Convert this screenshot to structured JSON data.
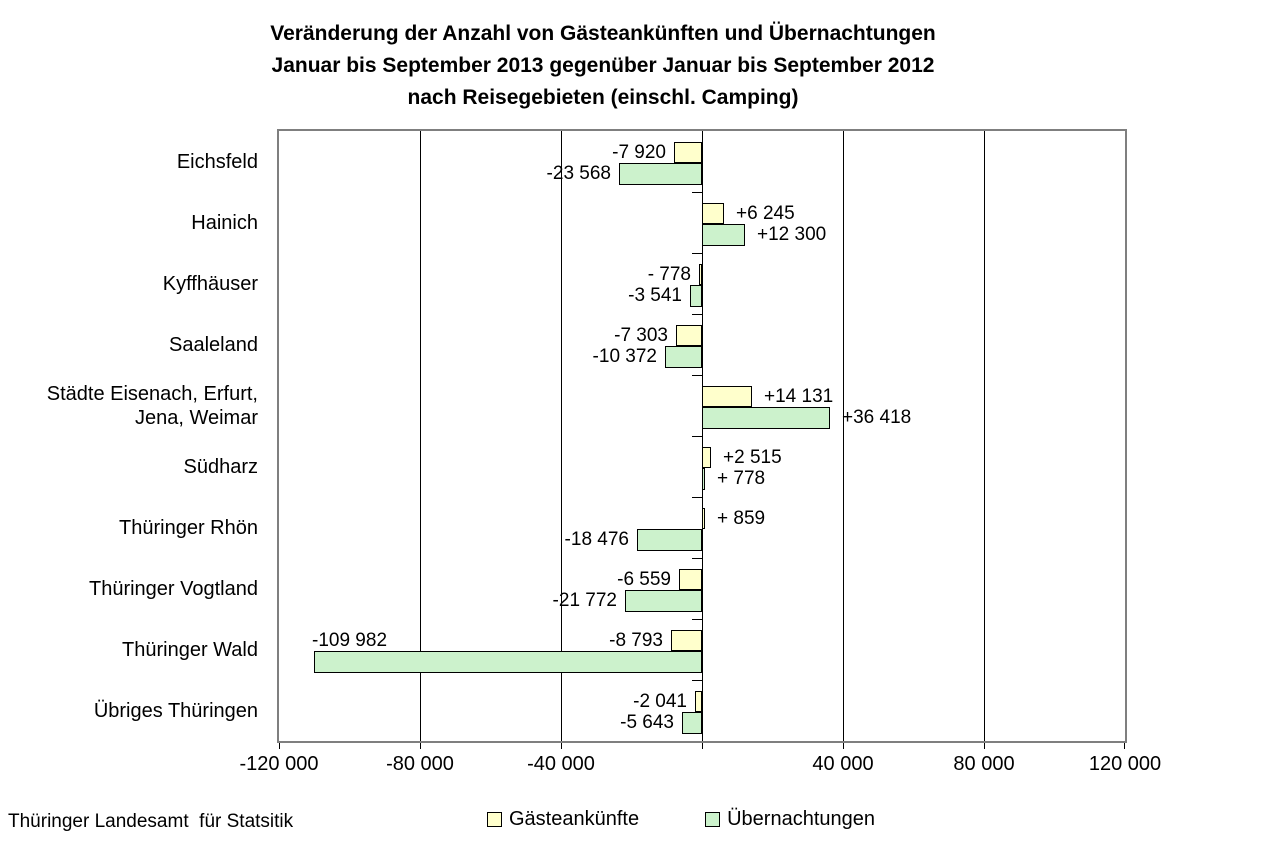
{
  "chart_data": {
    "type": "bar",
    "orientation": "horizontal",
    "title_lines": [
      "Veränderung der Anzahl von Gästeankünften und Übernachtungen",
      "Januar bis September 2013 gegenüber Januar bis September 2012",
      "nach Reisegebieten (einschl. Camping)"
    ],
    "categories": [
      "Eichsfeld",
      "Hainich",
      "Kyffhäuser",
      "Saaleland",
      "Städte Eisenach, Erfurt, Jena, Weimar",
      "Südharz",
      "Thüringer Rhön",
      "Thüringer Vogtland",
      "Thüringer Wald",
      "Übriges Thüringen"
    ],
    "series": [
      {
        "name": "Gästeankünfte",
        "color": "#FFFFCC",
        "values": [
          -7920,
          6245,
          -778,
          -7303,
          14131,
          2515,
          859,
          -6559,
          -8793,
          -2041
        ],
        "labels": [
          "-7 920",
          "+6 245",
          "- 778",
          "-7 303",
          "+14 131",
          "+2 515",
          "+ 859",
          "-6 559",
          "-8 793",
          "-2 041"
        ]
      },
      {
        "name": "Übernachtungen",
        "color": "#CCF2CC",
        "values": [
          -23568,
          12300,
          -3541,
          -10372,
          36418,
          778,
          -18476,
          -21772,
          -109982,
          -5643
        ],
        "labels": [
          "-23 568",
          "+12 300",
          "-3 541",
          "-10 372",
          "+36 418",
          "+ 778",
          "-18 476",
          "-21 772",
          "-109 982",
          "-5 643"
        ]
      }
    ],
    "x_axis": {
      "min": -120000,
      "max": 120000,
      "ticks": [
        {
          "value": -120000,
          "label": "-120 000"
        },
        {
          "value": -80000,
          "label": "-80 000"
        },
        {
          "value": -40000,
          "label": "-40 000"
        },
        {
          "value": 0,
          "label": ""
        },
        {
          "value": 40000,
          "label": "40 000"
        },
        {
          "value": 80000,
          "label": "80 000"
        },
        {
          "value": 120000,
          "label": "120 000"
        }
      ]
    },
    "grid": true,
    "legend_position": "bottom"
  },
  "legend": [
    {
      "label": "Gästeankünfte",
      "color": "#FFFFCC"
    },
    {
      "label": "Übernachtungen",
      "color": "#CCF2CC"
    }
  ],
  "footer": {
    "source": "Thüringer Landesamt  für Statsitik"
  }
}
